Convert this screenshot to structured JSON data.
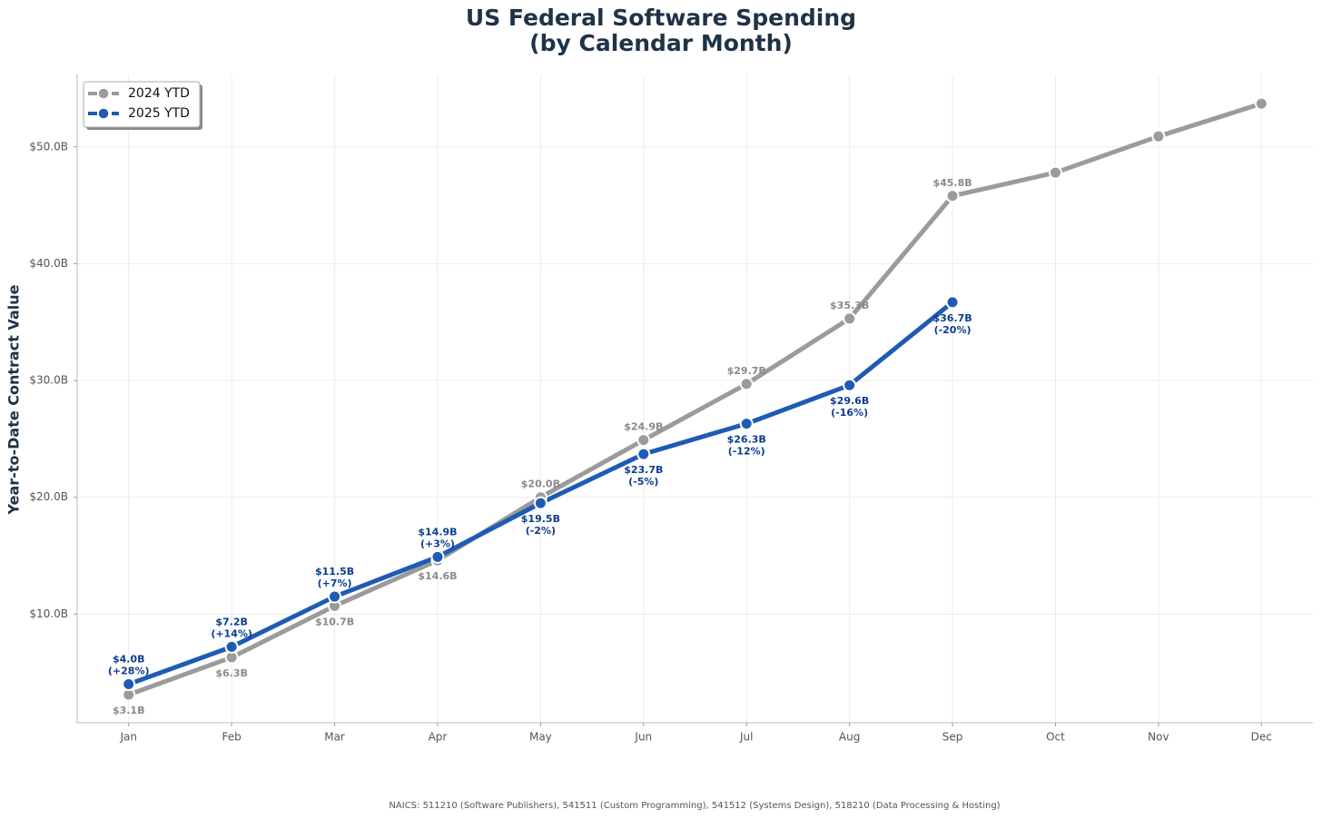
{
  "chart_data": {
    "type": "line",
    "title": "US Federal Software Spending",
    "subtitle": "(by Calendar Month)",
    "y_label": "Year-to-Date Contract Value",
    "footnote": "NAICS: 511210 (Software Publishers), 541511 (Custom Programming), 541512 (Systems Design), 518210 (Data Processing & Hosting)",
    "categories": [
      "Jan",
      "Feb",
      "Mar",
      "Apr",
      "May",
      "Jun",
      "Jul",
      "Aug",
      "Sep",
      "Oct",
      "Nov",
      "Dec"
    ],
    "series": [
      {
        "name": "2024 YTD",
        "color": "#9b9b9b",
        "label_color": "#8a8a8a",
        "values": [
          3.1,
          6.3,
          10.7,
          14.6,
          20.0,
          24.9,
          29.7,
          35.3,
          45.8,
          47.8,
          50.9,
          53.7
        ],
        "value_labels": [
          "$3.1B",
          "$6.3B",
          "$10.7B",
          "$14.6B",
          "$20.0B",
          "$24.9B",
          "$29.7B",
          "$35.3B",
          "$45.8B",
          null,
          null,
          null
        ]
      },
      {
        "name": "2025 YTD",
        "color": "#1f5bb5",
        "label_color": "#0d3d8f",
        "values": [
          4.0,
          7.2,
          11.5,
          14.9,
          19.5,
          23.7,
          26.3,
          29.6,
          36.7,
          null,
          null,
          null
        ],
        "value_labels": [
          "$4.0B",
          "$7.2B",
          "$11.5B",
          "$14.9B",
          "$19.5B",
          "$23.7B",
          "$26.3B",
          "$29.6B",
          "$36.7B",
          null,
          null,
          null
        ],
        "change_labels": [
          "(+28%)",
          "(+14%)",
          "(+7%)",
          "(+3%)",
          "(-2%)",
          "(-5%)",
          "(-12%)",
          "(-16%)",
          "(-20%)",
          null,
          null,
          null
        ]
      }
    ],
    "ylim": [
      0.7,
      56.2
    ],
    "yticks": [
      {
        "value": 10,
        "label": "$10.0B"
      },
      {
        "value": 20,
        "label": "$20.0B"
      },
      {
        "value": 30,
        "label": "$30.0B"
      },
      {
        "value": 40,
        "label": "$40.0B"
      },
      {
        "value": 50,
        "label": "$50.0B"
      }
    ],
    "grid": true,
    "legend": "upper-left"
  }
}
